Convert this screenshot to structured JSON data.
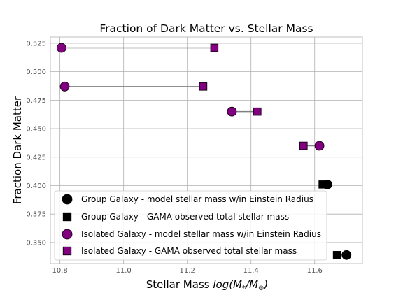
{
  "chart_data": {
    "type": "scatter",
    "title": "Fraction of Dark Matter vs. Stellar Mass",
    "xlabel_prefix": "Stellar Mass ",
    "xlabel_math": "log(M",
    "xlabel_sub1": "*",
    "xlabel_mid": "/M",
    "xlabel_sub2": "⊙",
    "xlabel_close": ")",
    "ylabel": "Fraction Dark Matter",
    "xlim": [
      10.77,
      11.75
    ],
    "ylim": [
      0.3315,
      0.5305
    ],
    "x_ticks": [
      10.8,
      11.0,
      11.2,
      11.4,
      11.6
    ],
    "x_tick_labels": [
      "10.8",
      "11.0",
      "11.2",
      "11.4",
      "11.6"
    ],
    "y_ticks": [
      0.35,
      0.375,
      0.4,
      0.425,
      0.45,
      0.475,
      0.5,
      0.525
    ],
    "y_tick_labels": [
      "0.350",
      "0.375",
      "0.400",
      "0.425",
      "0.450",
      "0.475",
      "0.500",
      "0.525"
    ],
    "grid": true,
    "legend_position": "lower-left",
    "colors": {
      "group": "#000000",
      "isolated": "#800080",
      "connector": "#808080"
    },
    "series": [
      {
        "name": "Group Galaxy - model stellar mass w/in Einstein Radius",
        "marker": "circle",
        "color": "#000000",
        "points": [
          [
            11.64,
            0.401
          ],
          [
            11.7,
            0.339
          ]
        ]
      },
      {
        "name": "Group Galaxy - GAMA observed total stellar mass",
        "marker": "square",
        "color": "#000000",
        "points": [
          [
            11.625,
            0.401
          ],
          [
            11.67,
            0.339
          ]
        ]
      },
      {
        "name": "Isolated Galaxy - model stellar mass w/in Einstein Radius",
        "marker": "circle",
        "color": "#800080",
        "points": [
          [
            10.805,
            0.521
          ],
          [
            10.815,
            0.487
          ],
          [
            11.34,
            0.465
          ],
          [
            11.615,
            0.435
          ]
        ]
      },
      {
        "name": "Isolated Galaxy - GAMA observed total stellar mass",
        "marker": "square",
        "color": "#800080",
        "points": [
          [
            11.285,
            0.521
          ],
          [
            11.25,
            0.487
          ],
          [
            11.42,
            0.465
          ],
          [
            11.565,
            0.435
          ]
        ]
      }
    ],
    "connections": [
      [
        [
          10.805,
          0.521
        ],
        [
          11.285,
          0.521
        ]
      ],
      [
        [
          10.815,
          0.487
        ],
        [
          11.25,
          0.487
        ]
      ],
      [
        [
          11.34,
          0.465
        ],
        [
          11.42,
          0.465
        ]
      ],
      [
        [
          11.565,
          0.435
        ],
        [
          11.615,
          0.435
        ]
      ],
      [
        [
          11.625,
          0.401
        ],
        [
          11.64,
          0.401
        ]
      ],
      [
        [
          11.67,
          0.339
        ],
        [
          11.7,
          0.339
        ]
      ]
    ]
  }
}
